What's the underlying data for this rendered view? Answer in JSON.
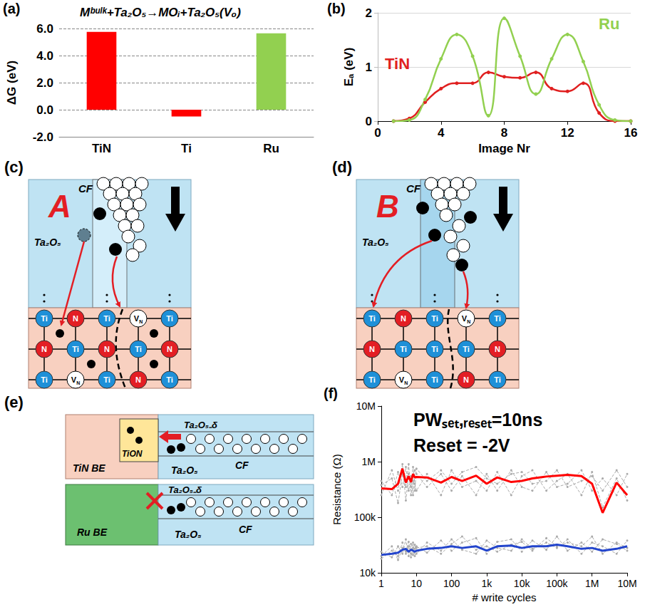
{
  "chart_data": [
    {
      "panel_label": "(a)",
      "type": "bar",
      "title": "Mᵇᵘˡᵏ+Ta₂O₅→MOᵢ+Ta₂O₅(Vₒ)",
      "y_label": "ΔG (eV)",
      "categories": [
        "TiN",
        "Ti",
        "Ru"
      ],
      "values": [
        5.75,
        -0.5,
        5.65
      ],
      "colors": [
        "#ff0000",
        "#ff0000",
        "#92d050"
      ],
      "ylim": [
        -2,
        6
      ],
      "yticks": [
        {
          "value": -2,
          "label": "-2.0"
        },
        {
          "value": 0,
          "label": "0.0"
        },
        {
          "value": 2,
          "label": "2.0"
        },
        {
          "value": 4,
          "label": "4.0"
        },
        {
          "value": 6,
          "label": "6.0"
        }
      ],
      "grid": true
    },
    {
      "panel_label": "(b)",
      "type": "line",
      "x_label": "Image Nr",
      "y_label": "Eₐ (eV)",
      "x": [
        1,
        2,
        3,
        4,
        5,
        6,
        7,
        8,
        9,
        10,
        11,
        12,
        13,
        14,
        15,
        16
      ],
      "series": [
        {
          "name": "TiN",
          "color": "#e02020",
          "values": [
            0,
            0.05,
            0.35,
            0.6,
            0.7,
            0.7,
            0.9,
            0.82,
            0.8,
            0.9,
            0.6,
            0.55,
            0.7,
            0.15,
            0,
            0
          ]
        },
        {
          "name": "Ru",
          "color": "#92d050",
          "values": [
            0,
            0.02,
            0.4,
            1.15,
            1.6,
            1.2,
            0.1,
            1.9,
            1.2,
            0.5,
            1.15,
            1.6,
            1.1,
            0.3,
            0.02,
            0
          ]
        }
      ],
      "xlim": [
        0,
        16
      ],
      "xticks": [
        0,
        4,
        8,
        12,
        16
      ],
      "ylim": [
        0,
        2
      ],
      "yticks": [
        0,
        1,
        2
      ],
      "grid": true,
      "marker": "circle"
    },
    {
      "panel_label": "(f)",
      "type": "line",
      "annotations": [
        "PWₛₑₜ,ᵣₑₛₑₜ=10ns",
        "Reset = -2V"
      ],
      "x_label": "# write cycles",
      "y_label": "Resistance (Ω)",
      "x": [
        1,
        2,
        3,
        4,
        5,
        6,
        7,
        8,
        9,
        10,
        20,
        50,
        100,
        200,
        500,
        1000,
        2000,
        5000,
        10000,
        20000,
        50000,
        100000,
        200000,
        500000,
        1000000,
        2000000,
        5000000,
        10000000
      ],
      "series": [
        {
          "color": "#aaaaaa",
          "marker": "circle",
          "line_style": "dashed",
          "values": [
            250000,
            700000,
            300000,
            900000,
            200000,
            600000,
            350000,
            800000,
            400000,
            300000,
            600000,
            250000,
            700000,
            350000,
            450000,
            300000,
            650000,
            250000,
            550000,
            700000,
            300000,
            450000,
            600000,
            250000,
            650000,
            150000,
            500000,
            200000
          ]
        },
        {
          "color": "#aaaaaa",
          "marker": "circle",
          "line_style": "dashed",
          "values": [
            450000,
            250000,
            650000,
            350000,
            800000,
            300000,
            550000,
            250000,
            700000,
            600000,
            350000,
            600000,
            300000,
            550000,
            250000,
            600000,
            300000,
            700000,
            350000,
            300000,
            650000,
            350000,
            400000,
            700000,
            300000,
            500000,
            250000,
            600000
          ]
        },
        {
          "color": "#aaaaaa",
          "marker": "circle",
          "line_style": "dashed",
          "values": [
            380000,
            500000,
            180000,
            600000,
            350000,
            900000,
            250000,
            450000,
            300000,
            750000,
            450000,
            700000,
            400000,
            650000,
            800000,
            500000,
            400000,
            600000,
            650000,
            400000,
            450000,
            700000,
            350000,
            450000,
            550000,
            300000,
            700000,
            350000
          ]
        },
        {
          "color": "#aaaaaa",
          "marker": "circle",
          "line_style": "dashed",
          "values": [
            18000,
            25000,
            20000,
            35000,
            22000,
            30000,
            19000,
            28000,
            32000,
            22000,
            35000,
            25000,
            40000,
            26000,
            22000,
            38000,
            28000,
            25000,
            40000,
            27000,
            35000,
            28000,
            40000,
            22000,
            35000,
            30000,
            22000,
            38000
          ]
        },
        {
          "color": "#aaaaaa",
          "marker": "circle",
          "line_style": "dashed",
          "values": [
            24000,
            19000,
            30000,
            22000,
            40000,
            20000,
            33000,
            21000,
            27000,
            30000,
            23000,
            38000,
            25000,
            35000,
            42000,
            22000,
            36000,
            40000,
            24000,
            38000,
            26000,
            45000,
            25000,
            35000,
            24000,
            40000,
            33000,
            25000
          ]
        },
        {
          "color": "#aaaaaa",
          "marker": "circle",
          "line_style": "dashed",
          "values": [
            20000,
            30000,
            17000,
            28000,
            24000,
            36000,
            22000,
            35000,
            20000,
            28000,
            30000,
            22000,
            33000,
            45000,
            26000,
            30000,
            24000,
            32000,
            36000,
            25000,
            42000,
            30000,
            35000,
            30000,
            45000,
            22000,
            35000,
            28000
          ]
        },
        {
          "color": "#ff0000",
          "marker": "none",
          "line_style": "solid",
          "values": [
            330000,
            320000,
            400000,
            750000,
            420000,
            550000,
            430000,
            600000,
            520000,
            530000,
            520000,
            420000,
            530000,
            450000,
            560000,
            400000,
            520000,
            430000,
            450000,
            500000,
            540000,
            560000,
            580000,
            550000,
            400000,
            120000,
            420000,
            250000
          ]
        },
        {
          "color": "#2244cc",
          "marker": "none",
          "line_style": "solid",
          "values": [
            21000,
            22000,
            23000,
            26000,
            27000,
            24000,
            26000,
            25000,
            24000,
            25000,
            27000,
            28000,
            30000,
            28000,
            30000,
            25000,
            30000,
            31000,
            28000,
            30000,
            30000,
            32000,
            30000,
            27000,
            28000,
            25000,
            27000,
            30000
          ]
        }
      ],
      "log": true,
      "xlim": [
        1,
        10000000
      ],
      "xticks": [
        1,
        10,
        100,
        {
          "value": 1000,
          "label": "1k"
        },
        {
          "value": 10000,
          "label": "10k"
        },
        {
          "value": 100000,
          "label": "100k"
        },
        {
          "value": 1000000,
          "label": "1M"
        },
        {
          "value": 10000000,
          "label": "10M"
        }
      ],
      "ylim": [
        10000,
        10000000
      ],
      "yticks": [
        {
          "value": 10000,
          "label": "10k"
        },
        {
          "value": 100000,
          "label": "100k"
        },
        {
          "value": 1000000,
          "label": "1M"
        },
        {
          "value": 10000000,
          "label": "10M"
        }
      ],
      "grid": false
    }
  ],
  "diagrams": {
    "atoms": {
      "Ti": {
        "text": "Ti",
        "color": "#1e90d8"
      },
      "N": {
        "text": "N",
        "color": "#e31e24"
      },
      "VN": {
        "text": "V",
        "sub": "N",
        "color": "#ffffff"
      }
    },
    "c": {
      "panel_label": "(c)",
      "mechanism": "A",
      "filament_label": "CF",
      "oxide_label": "Ta₂O₅",
      "lattice": [
        [
          "Ti",
          "N",
          "Ti",
          "VN",
          "Ti"
        ],
        [
          "N",
          "Ti",
          "N",
          "Ti",
          "N"
        ],
        [
          "Ti",
          "VN",
          "Ti",
          "N",
          "Ti"
        ]
      ]
    },
    "d": {
      "panel_label": "(d)",
      "mechanism": "B",
      "filament_label": "CF",
      "oxide_label": "Ta₂O₅",
      "lattice": [
        [
          "Ti",
          "N",
          "Ti",
          "VN",
          "Ti"
        ],
        [
          "N",
          "Ti",
          "Ti",
          "Ti",
          "N"
        ],
        [
          "Ti",
          "VN",
          "Ti",
          "N",
          "Ti"
        ]
      ]
    },
    "e": {
      "panel_label": "(e)",
      "top": {
        "electrode_label": "TiN BE",
        "interlayer_label": "TiON",
        "reduced_oxide_label": "Ta₂O₅₋δ",
        "filament_label": "CF",
        "oxide_label": "Ta₂O₅"
      },
      "bottom": {
        "electrode_label": "Ru BE",
        "reduced_oxide_label": "Ta₂O₅₋δ",
        "filament_label": "CF",
        "oxide_label": "Ta₂O₅"
      }
    }
  }
}
